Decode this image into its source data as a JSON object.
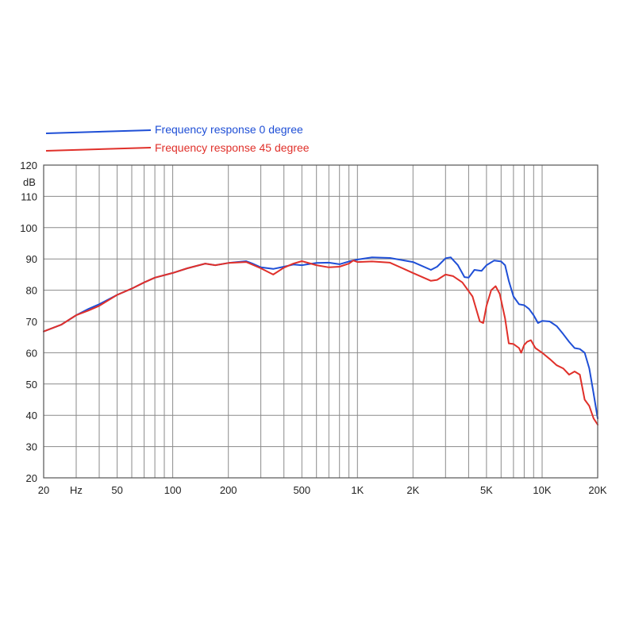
{
  "chart_data": {
    "type": "line",
    "title": "",
    "xlabel": "",
    "ylabel": "",
    "y_unit_label": "dB",
    "x_scale": "log",
    "xlim": [
      20,
      20000
    ],
    "ylim": [
      20,
      120
    ],
    "grid": true,
    "legend_position": "top-left",
    "x_tick_labels": [
      {
        "value": 20,
        "label": "20"
      },
      {
        "value": 30,
        "label": "Hz"
      },
      {
        "value": 50,
        "label": "50"
      },
      {
        "value": 100,
        "label": "100"
      },
      {
        "value": 200,
        "label": "200"
      },
      {
        "value": 500,
        "label": "500"
      },
      {
        "value": 1000,
        "label": "1K"
      },
      {
        "value": 2000,
        "label": "2K"
      },
      {
        "value": 5000,
        "label": "5K"
      },
      {
        "value": 10000,
        "label": "10K"
      },
      {
        "value": 20000,
        "label": "20K"
      }
    ],
    "x_grid": [
      20,
      30,
      40,
      50,
      60,
      70,
      80,
      90,
      100,
      200,
      300,
      400,
      500,
      600,
      700,
      800,
      900,
      1000,
      2000,
      3000,
      4000,
      5000,
      6000,
      7000,
      8000,
      9000,
      10000,
      20000
    ],
    "y_ticks": [
      {
        "value": 20,
        "label": "20"
      },
      {
        "value": 30,
        "label": "30"
      },
      {
        "value": 40,
        "label": "40"
      },
      {
        "value": 50,
        "label": "50"
      },
      {
        "value": 60,
        "label": "60"
      },
      {
        "value": 70,
        "label": "70"
      },
      {
        "value": 80,
        "label": "80"
      },
      {
        "value": 90,
        "label": "90"
      },
      {
        "value": 100,
        "label": "100"
      },
      {
        "value": 110,
        "label": "110"
      },
      {
        "value": 120,
        "label": "120"
      }
    ],
    "series": [
      {
        "name": "Frequency response 0 degree",
        "color": "#1f4fd6",
        "points": [
          [
            20,
            66.8
          ],
          [
            25,
            69
          ],
          [
            30,
            72
          ],
          [
            35,
            74
          ],
          [
            40,
            75.5
          ],
          [
            50,
            78.5
          ],
          [
            60,
            80.5
          ],
          [
            70,
            82.5
          ],
          [
            80,
            84
          ],
          [
            100,
            85.5
          ],
          [
            120,
            87
          ],
          [
            150,
            88.5
          ],
          [
            170,
            88
          ],
          [
            200,
            88.7
          ],
          [
            250,
            89.3
          ],
          [
            270,
            88.5
          ],
          [
            300,
            87.3
          ],
          [
            350,
            86.8
          ],
          [
            400,
            87.5
          ],
          [
            450,
            88.2
          ],
          [
            500,
            88
          ],
          [
            600,
            88.7
          ],
          [
            700,
            88.8
          ],
          [
            800,
            88.3
          ],
          [
            900,
            89.2
          ],
          [
            1000,
            89.8
          ],
          [
            1200,
            90.5
          ],
          [
            1500,
            90.3
          ],
          [
            2000,
            89
          ],
          [
            2500,
            86.5
          ],
          [
            2700,
            87.5
          ],
          [
            3000,
            90.2
          ],
          [
            3200,
            90.5
          ],
          [
            3500,
            88
          ],
          [
            3800,
            84.2
          ],
          [
            4000,
            84
          ],
          [
            4300,
            86.5
          ],
          [
            4700,
            86.2
          ],
          [
            5000,
            88
          ],
          [
            5500,
            89.5
          ],
          [
            6000,
            89.2
          ],
          [
            6300,
            88
          ],
          [
            6600,
            83
          ],
          [
            7000,
            78
          ],
          [
            7500,
            75.5
          ],
          [
            8000,
            75.2
          ],
          [
            8500,
            74
          ],
          [
            9000,
            72
          ],
          [
            9500,
            69.5
          ],
          [
            10000,
            70.2
          ],
          [
            11000,
            70
          ],
          [
            12000,
            68.5
          ],
          [
            13000,
            66
          ],
          [
            14000,
            63.5
          ],
          [
            15000,
            61.5
          ],
          [
            16000,
            61.2
          ],
          [
            17000,
            60
          ],
          [
            18000,
            55
          ],
          [
            19000,
            47
          ],
          [
            20000,
            39
          ]
        ]
      },
      {
        "name": "Frequency response 45 degree",
        "color": "#e0302a",
        "points": [
          [
            20,
            66.8
          ],
          [
            25,
            69
          ],
          [
            30,
            72
          ],
          [
            35,
            73.5
          ],
          [
            40,
            75
          ],
          [
            50,
            78.5
          ],
          [
            60,
            80.5
          ],
          [
            70,
            82.5
          ],
          [
            80,
            84
          ],
          [
            100,
            85.5
          ],
          [
            120,
            87
          ],
          [
            150,
            88.5
          ],
          [
            170,
            88
          ],
          [
            200,
            88.7
          ],
          [
            250,
            89
          ],
          [
            300,
            87
          ],
          [
            350,
            85
          ],
          [
            400,
            87.2
          ],
          [
            450,
            88.5
          ],
          [
            500,
            89.3
          ],
          [
            600,
            88
          ],
          [
            700,
            87.3
          ],
          [
            800,
            87.5
          ],
          [
            900,
            88.5
          ],
          [
            950,
            89.5
          ],
          [
            1000,
            89
          ],
          [
            1200,
            89.2
          ],
          [
            1500,
            88.8
          ],
          [
            2000,
            85.5
          ],
          [
            2500,
            83
          ],
          [
            2700,
            83.3
          ],
          [
            3000,
            85
          ],
          [
            3300,
            84.5
          ],
          [
            3700,
            82.5
          ],
          [
            4200,
            78
          ],
          [
            4600,
            70
          ],
          [
            4800,
            69.5
          ],
          [
            5000,
            75
          ],
          [
            5300,
            80
          ],
          [
            5600,
            81.3
          ],
          [
            5900,
            78.8
          ],
          [
            6300,
            71
          ],
          [
            6600,
            63
          ],
          [
            7000,
            62.8
          ],
          [
            7500,
            61.5
          ],
          [
            7700,
            60
          ],
          [
            8000,
            62.5
          ],
          [
            8300,
            63.5
          ],
          [
            8700,
            64
          ],
          [
            9200,
            61.5
          ],
          [
            10000,
            60
          ],
          [
            11000,
            58
          ],
          [
            12000,
            56
          ],
          [
            13000,
            55
          ],
          [
            14000,
            53
          ],
          [
            15000,
            54
          ],
          [
            16000,
            53
          ],
          [
            17000,
            45
          ],
          [
            18000,
            43
          ],
          [
            19000,
            39
          ],
          [
            20000,
            37
          ]
        ]
      }
    ]
  }
}
